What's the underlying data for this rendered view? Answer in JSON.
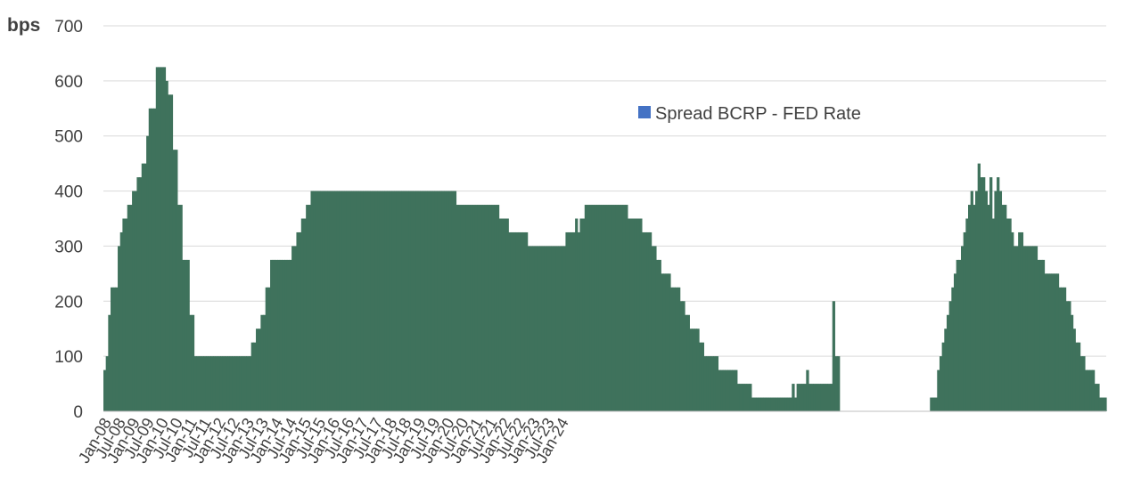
{
  "chart_data": {
    "type": "bar",
    "title": "",
    "xlabel": "",
    "ylabel": "bps",
    "ylim": [
      0,
      700
    ],
    "y_ticks": [
      "0",
      "100",
      "200",
      "300",
      "400",
      "500",
      "600",
      "700"
    ],
    "grid": true,
    "legend_position": "top-right",
    "colors": {
      "bars": "#3f725c",
      "legend_swatch": "#4472c4",
      "grid": "#d9d9d9"
    },
    "tick_labels": [
      "Jan-08",
      "Jul-08",
      "Jan-09",
      "Jul-09",
      "Jan-10",
      "Jul-10",
      "Jan-11",
      "Jul-11",
      "Jan-12",
      "Jul-12",
      "Jan-13",
      "Jul-13",
      "Jan-14",
      "Jul-14",
      "Jan-15",
      "Jul-15",
      "Jan-16",
      "Jul-16",
      "Jan-17",
      "Jul-17",
      "Jan-18",
      "Jul-18",
      "Jan-19",
      "Jul-19",
      "Jan-20",
      "Jul-20",
      "Jan-21",
      "Jul-21",
      "Jan-22",
      "Jul-22",
      "Jan-23",
      "Jul-23",
      "Jan-24"
    ],
    "start_label": "Jan-08",
    "series": [
      {
        "name": "Spread BCRP - FED Rate",
        "values": [
          75,
          100,
          175,
          225,
          225,
          225,
          300,
          325,
          350,
          350,
          375,
          375,
          400,
          400,
          425,
          425,
          450,
          450,
          500,
          550,
          550,
          550,
          625,
          625,
          625,
          625,
          600,
          575,
          575,
          475,
          475,
          375,
          375,
          275,
          275,
          275,
          175,
          175,
          100,
          100,
          100,
          100,
          100,
          100,
          100,
          100,
          100,
          100,
          100,
          100,
          100,
          100,
          100,
          100,
          100,
          100,
          100,
          100,
          100,
          100,
          100,
          100,
          125,
          125,
          150,
          150,
          175,
          175,
          225,
          225,
          275,
          275,
          275,
          275,
          275,
          275,
          275,
          275,
          275,
          300,
          300,
          325,
          325,
          350,
          350,
          375,
          375,
          400,
          400,
          400,
          400,
          400,
          400,
          400,
          400,
          400,
          400,
          400,
          400,
          400,
          400,
          400,
          400,
          400,
          400,
          400,
          400,
          400,
          400,
          400,
          400,
          400,
          400,
          400,
          400,
          400,
          400,
          400,
          400,
          400,
          400,
          400,
          400,
          400,
          400,
          400,
          400,
          400,
          400,
          400,
          400,
          400,
          400,
          400,
          400,
          400,
          400,
          400,
          400,
          400,
          400,
          400,
          400,
          400,
          400,
          400,
          400,
          400,
          375,
          375,
          375,
          375,
          375,
          375,
          375,
          375,
          375,
          375,
          375,
          375,
          375,
          375,
          375,
          375,
          375,
          375,
          350,
          350,
          350,
          350,
          325,
          325,
          325,
          325,
          325,
          325,
          325,
          325,
          300,
          300,
          300,
          300,
          300,
          300,
          300,
          300,
          300,
          300,
          300,
          300,
          300,
          300,
          300,
          300,
          325,
          325,
          325,
          325,
          350,
          325,
          350,
          350,
          375,
          375,
          375,
          375,
          375,
          375,
          375,
          375,
          375,
          375,
          375,
          375,
          375,
          375,
          375,
          375,
          375,
          375,
          350,
          350,
          350,
          350,
          350,
          350,
          325,
          325,
          325,
          325,
          300,
          300,
          275,
          275,
          250,
          250,
          250,
          250,
          225,
          225,
          225,
          225,
          200,
          200,
          175,
          175,
          150,
          150,
          150,
          150,
          125,
          125,
          100,
          100,
          100,
          100,
          100,
          100,
          75,
          75,
          75,
          75,
          75,
          75,
          75,
          75,
          50,
          50,
          50,
          50,
          50,
          50,
          25,
          25,
          25,
          25,
          25,
          25,
          25,
          25,
          25,
          25,
          25,
          25,
          25,
          25,
          25,
          25,
          25,
          50,
          25,
          50,
          50,
          50,
          50,
          75,
          50,
          50,
          50,
          50,
          50,
          50,
          50,
          50,
          50,
          50,
          200,
          100,
          100,
          0,
          0,
          0,
          0,
          0,
          0,
          0,
          0,
          0,
          0,
          0,
          0,
          0,
          0,
          0,
          0,
          0,
          0,
          0,
          0,
          0,
          0,
          0,
          0,
          0,
          0,
          0,
          0,
          0,
          0,
          0,
          0,
          0,
          0,
          0,
          0,
          0,
          0,
          25,
          25,
          25,
          75,
          100,
          125,
          150,
          175,
          200,
          225,
          250,
          275,
          275,
          300,
          325,
          350,
          375,
          400,
          375,
          400,
          450,
          425,
          425,
          400,
          375,
          425,
          350,
          400,
          425,
          400,
          375,
          375,
          350,
          350,
          325,
          300,
          300,
          325,
          325,
          300,
          300,
          300,
          300,
          300,
          300,
          275,
          275,
          275,
          250,
          250,
          250,
          250,
          250,
          250,
          225,
          225,
          225,
          200,
          200,
          175,
          150,
          125,
          125,
          100,
          100,
          75,
          75,
          75,
          75,
          50,
          50,
          25,
          25,
          25
        ]
      }
    ]
  }
}
